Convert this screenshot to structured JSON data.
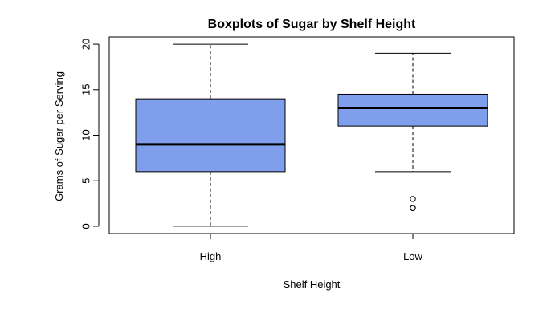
{
  "chart_data": {
    "type": "boxplot",
    "title": "Boxplots of Sugar by Shelf Height",
    "xlabel": "Shelf Height",
    "ylabel": "Grams of Sugar per Serving",
    "ylim": [
      -0.8,
      20.8
    ],
    "yticks": [
      0,
      5,
      10,
      15,
      20
    ],
    "box_color": "#7F9EEB",
    "grid": false,
    "categories": [
      "High",
      "Low"
    ],
    "boxes": [
      {
        "category": "High",
        "whisker_low": 0,
        "q1": 6,
        "median": 9,
        "q3": 14,
        "whisker_high": 20,
        "outliers": []
      },
      {
        "category": "Low",
        "whisker_low": 6,
        "q1": 11,
        "median": 13,
        "q3": 14.5,
        "whisker_high": 19,
        "outliers": [
          2,
          2,
          3
        ]
      }
    ]
  }
}
